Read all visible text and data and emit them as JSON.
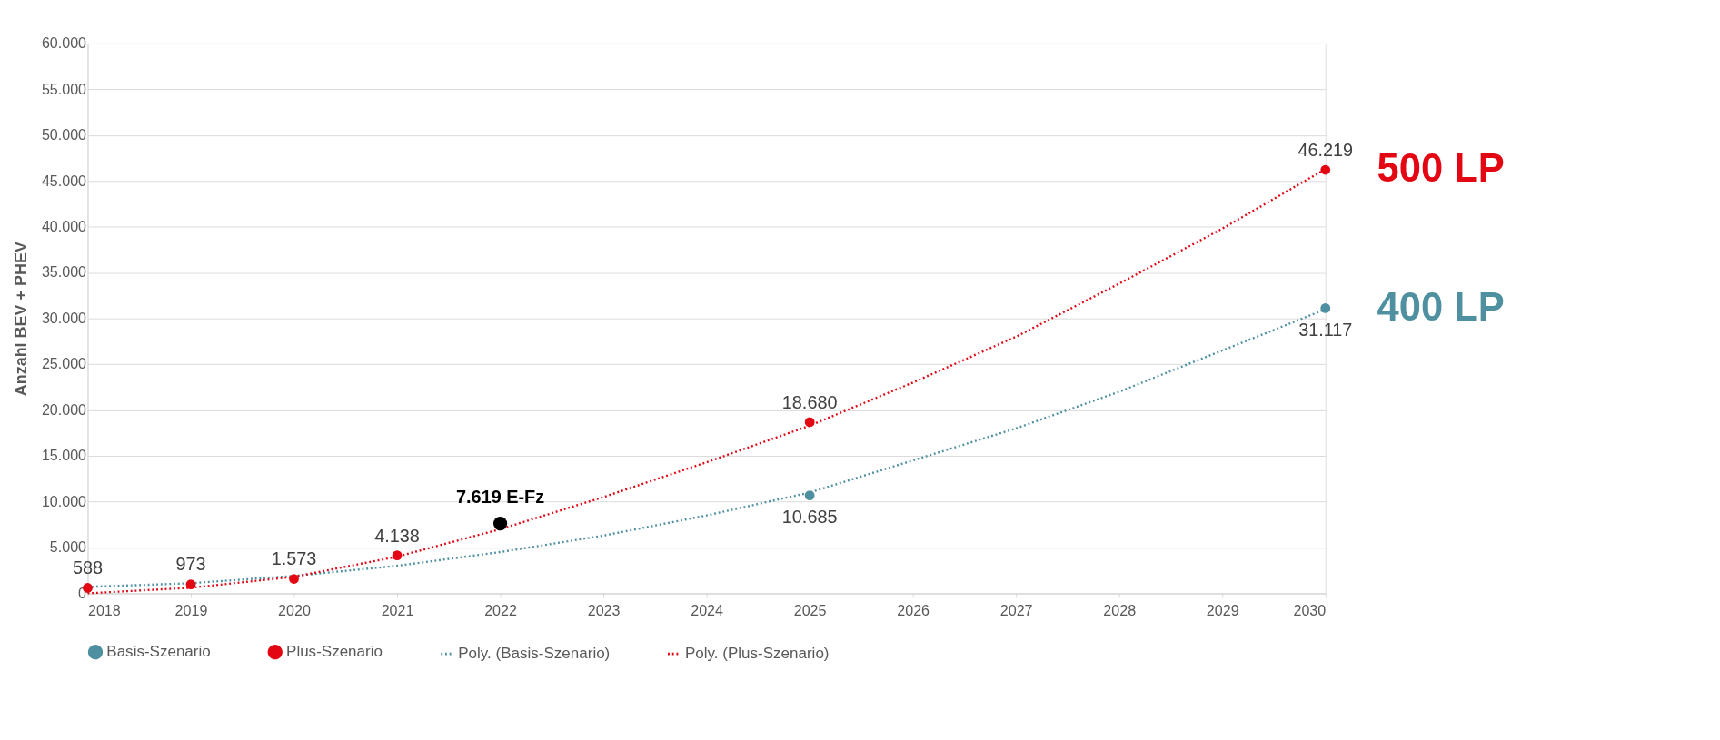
{
  "chart_data": {
    "type": "scatter",
    "ylabel": "Anzahl BEV + PHEV",
    "series": [
      {
        "name": "Basis-Szenario",
        "color": "#4e8fa0",
        "x": [
          2025,
          2030
        ],
        "values": [
          10685,
          31117
        ],
        "value_labels": [
          "10.685",
          "31.117"
        ]
      },
      {
        "name": "Plus-Szenario",
        "color": "#e30613",
        "x": [
          2018,
          2019,
          2020,
          2021,
          2025,
          2030
        ],
        "values": [
          588,
          973,
          1573,
          4138,
          18680,
          46219
        ],
        "value_labels": [
          "588",
          "973",
          "1.573",
          "4.138",
          "18.680",
          "46.219"
        ]
      },
      {
        "color": "#000000",
        "x": [
          2022
        ],
        "values": [
          7619
        ],
        "value_labels": [
          "7.619 E-Fz"
        ]
      },
      {
        "name": "Poly. (Basis-Szenario)",
        "type": "line",
        "marker": "none",
        "line_style": "dotted",
        "color": "#4e8fa0",
        "x": [
          2018,
          2019,
          2020,
          2021,
          2022,
          2023,
          2024,
          2025,
          2026,
          2027,
          2028,
          2029,
          2030
        ],
        "values": [
          700,
          1100,
          1900,
          3000,
          4500,
          6300,
          8500,
          11000,
          14500,
          18000,
          22000,
          26500,
          31000
        ]
      },
      {
        "name": "Poly. (Plus-Szenario)",
        "type": "line",
        "marker": "none",
        "line_style": "dotted",
        "color": "#e30613",
        "x": [
          2018,
          2019,
          2020,
          2021,
          2022,
          2023,
          2024,
          2025,
          2026,
          2027,
          2028,
          2029,
          2030
        ],
        "values": [
          0,
          600,
          1800,
          4000,
          7000,
          10500,
          14300,
          18300,
          23000,
          28000,
          33800,
          39800,
          46300
        ]
      }
    ],
    "xlim": [
      2018,
      2030
    ],
    "xticks": [
      2018,
      2019,
      2020,
      2021,
      2022,
      2023,
      2024,
      2025,
      2026,
      2027,
      2028,
      2029,
      2030
    ],
    "ylim": [
      0,
      60000
    ],
    "yticks": [
      0,
      {
        "value": 5000,
        "label": "5.000"
      },
      {
        "value": 10000,
        "label": "10.000"
      },
      {
        "value": 15000,
        "label": "15.000"
      },
      {
        "value": 20000,
        "label": "20.000"
      },
      {
        "value": 25000,
        "label": "25.000"
      },
      {
        "value": 30000,
        "label": "30.000"
      },
      {
        "value": 35000,
        "label": "35.000"
      },
      {
        "value": 40000,
        "label": "40.000"
      },
      {
        "value": 45000,
        "label": "45.000"
      },
      {
        "value": 50000,
        "label": "50.000"
      },
      {
        "value": 55000,
        "label": "55.000"
      },
      {
        "value": 60000,
        "label": "60.000"
      }
    ],
    "grid": "y",
    "marker": "circle",
    "legend": "bottom",
    "annotations": [
      {
        "text": "500 LP",
        "x": 2030,
        "y": 46219
      },
      {
        "text": "400 LP",
        "x": 2030,
        "y": 31117
      }
    ]
  }
}
